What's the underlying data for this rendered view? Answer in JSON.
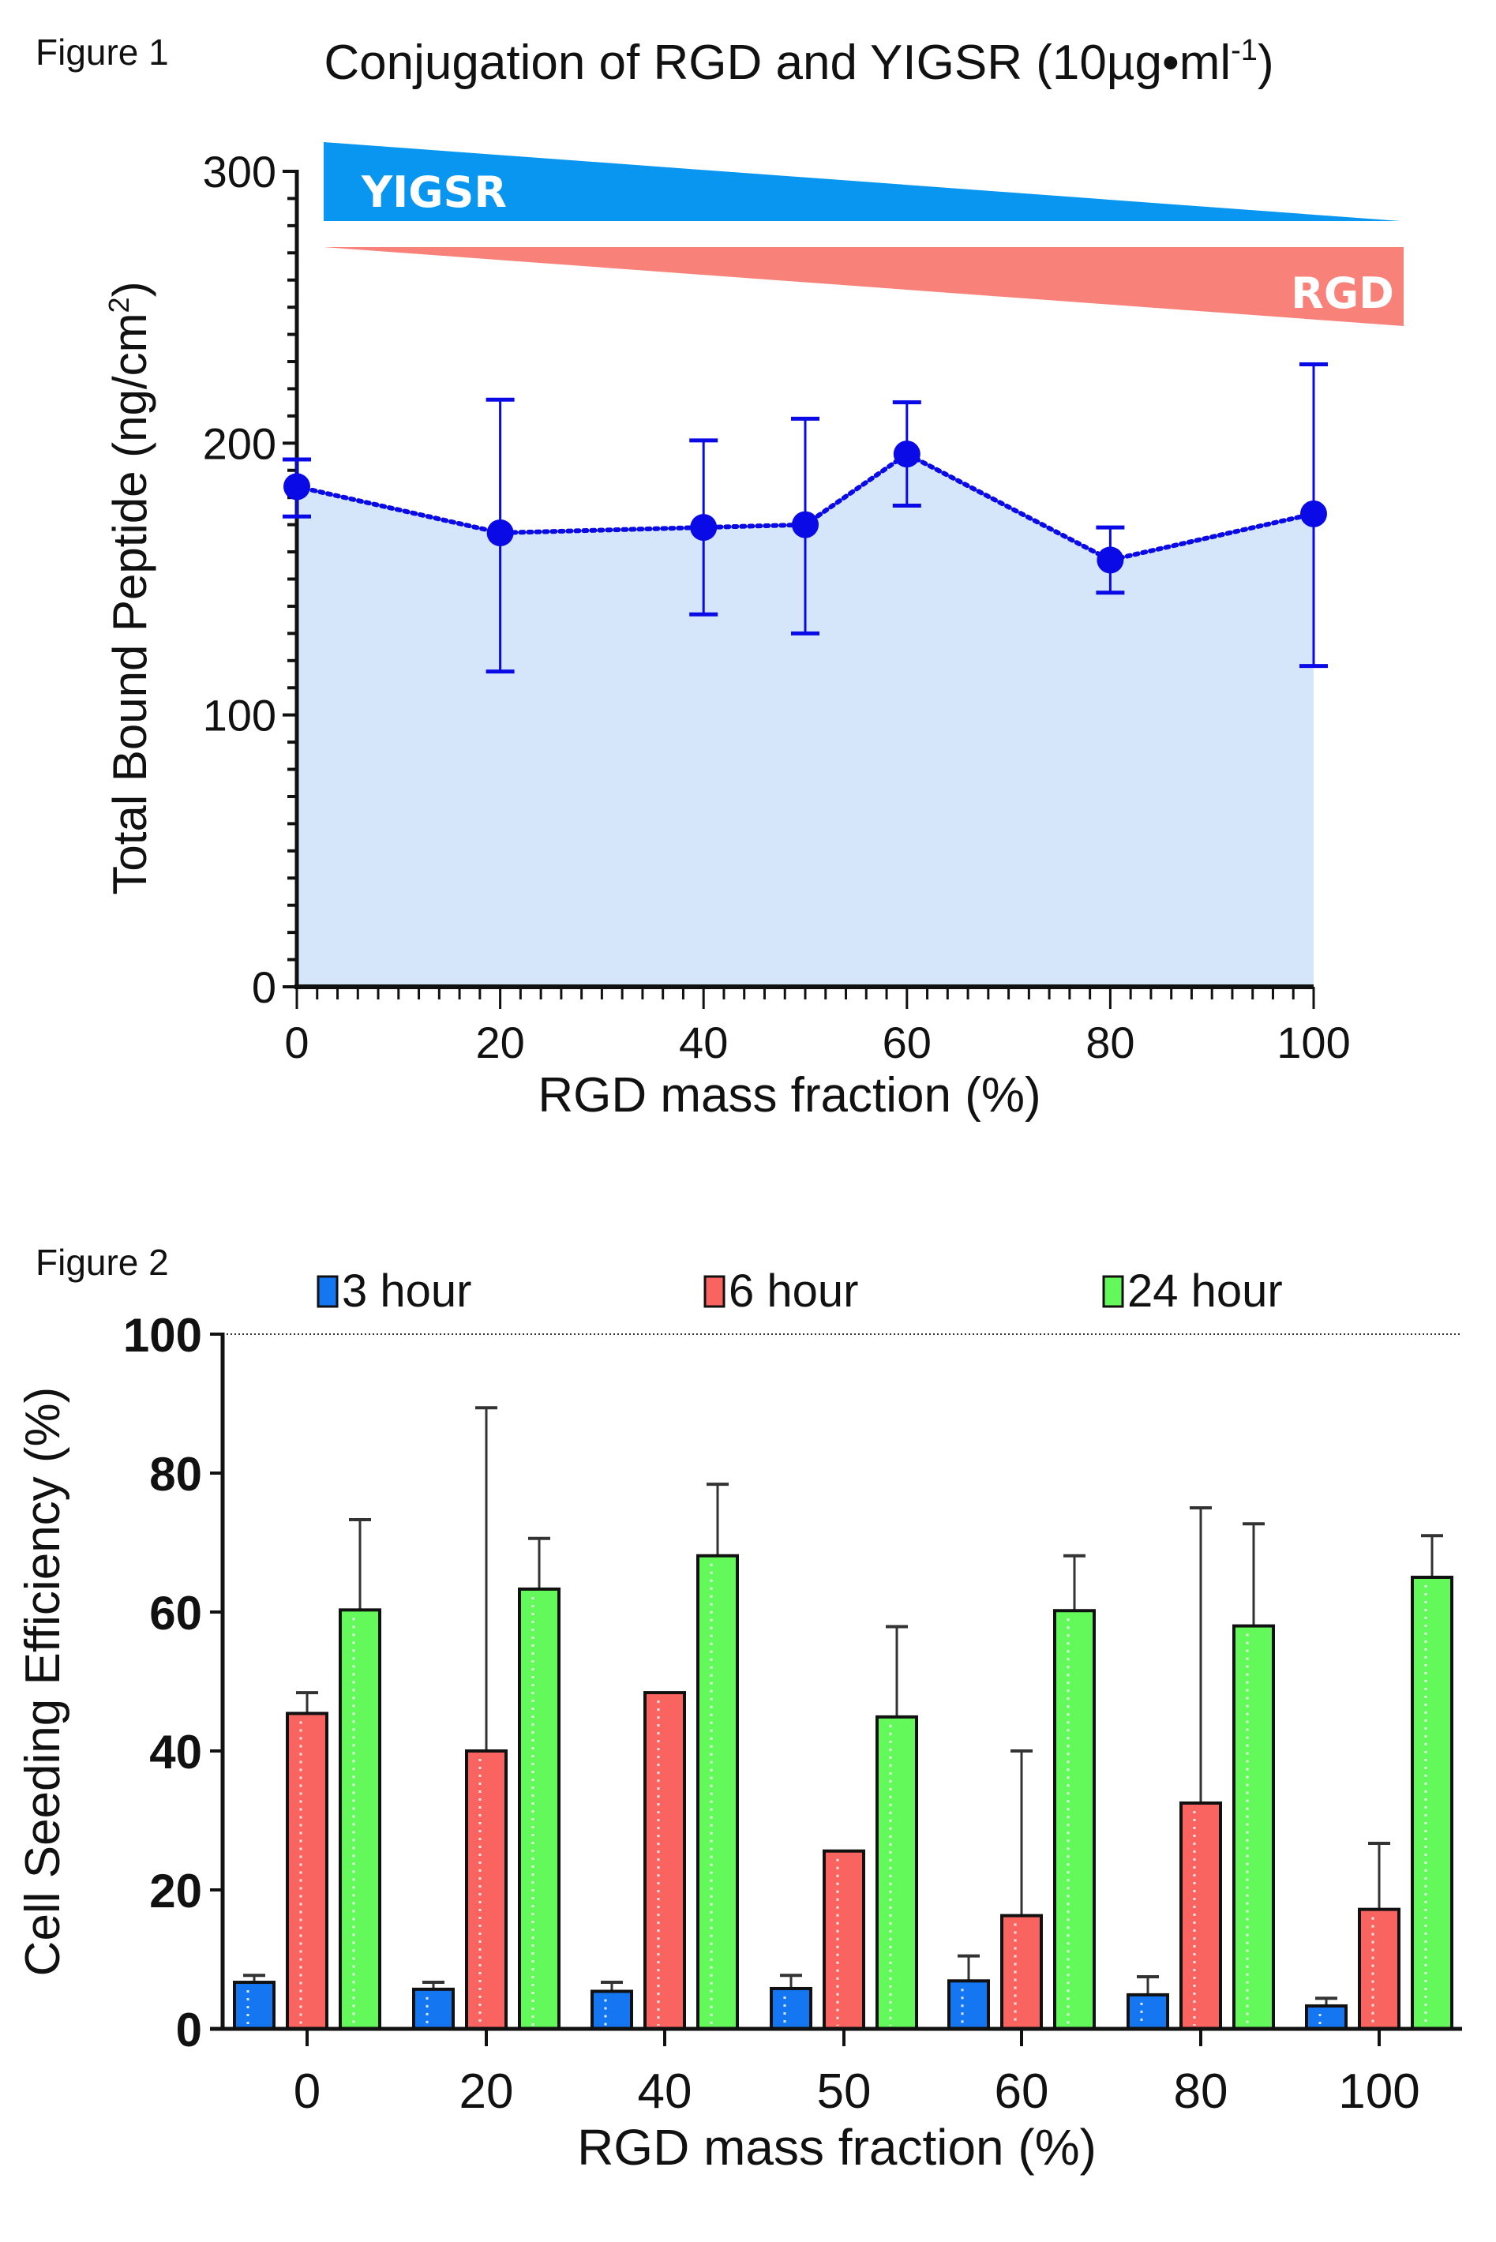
{
  "figures": [
    {
      "label": "Figure 1"
    },
    {
      "label": "Figure 2"
    }
  ],
  "chart_data": [
    {
      "type": "line",
      "title": "Conjugation of RGD and YIGSR (10µg•ml⁻¹)",
      "title_main": "Conjugation of RGD and YIGSR (10µg•ml",
      "title_sup": "-1",
      "title_end": ")",
      "xlabel": "RGD mass fraction (%)",
      "ylabel": "Total Bound Peptide (ng/cm²)",
      "ylabel_main": "Total Bound Peptide (ng/cm",
      "ylabel_sup": "2",
      "ylabel_end": ")",
      "xlim": [
        0,
        100
      ],
      "ylim": [
        0,
        300
      ],
      "xticks": [
        "0",
        "20",
        "40",
        "60",
        "80",
        "100"
      ],
      "yticks": [
        "0",
        "100",
        "200",
        "300"
      ],
      "x": [
        0,
        20,
        40,
        50,
        60,
        80,
        100
      ],
      "series": [
        {
          "name": "Total Bound Peptide",
          "values": [
            184,
            167,
            169,
            170,
            196,
            157,
            174
          ],
          "err_upper": [
            194,
            216,
            201,
            209,
            215,
            169,
            229
          ],
          "err_lower": [
            173,
            116,
            137,
            130,
            177,
            145,
            118
          ],
          "color": "#0a0ae6",
          "fill": "#d6e6fa",
          "line_style": "dotted"
        }
      ],
      "gradient_annotations": [
        {
          "label": "YIGSR",
          "trend": "decreasing",
          "color": "#0896f0"
        },
        {
          "label": "RGD",
          "trend": "increasing",
          "color": "#f8827a"
        }
      ],
      "grid": false
    },
    {
      "type": "bar",
      "title": "",
      "xlabel": "RGD mass fraction (%)",
      "ylabel": "Cell Seeding Efficiency (%)",
      "categories": [
        "0",
        "20",
        "40",
        "50",
        "60",
        "80",
        "100"
      ],
      "ylim": [
        0,
        100
      ],
      "yticks": [
        "0",
        "20",
        "40",
        "60",
        "80",
        "100"
      ],
      "reference_line": {
        "y": 100,
        "style": "dotted"
      },
      "legend_position": "top",
      "series": [
        {
          "name": "3 hour",
          "color": "#1476f0",
          "values": [
            6.7,
            5.7,
            5.4,
            5.8,
            6.9,
            4.9,
            3.3
          ],
          "err_upper": [
            7.7,
            6.7,
            6.7,
            7.7,
            10.5,
            7.5,
            4.4
          ]
        },
        {
          "name": "6 hour",
          "color": "#f96460",
          "values": [
            45.4,
            40.0,
            48.4,
            25.6,
            16.3,
            32.5,
            17.2
          ],
          "err_upper": [
            48.4,
            89.4,
            null,
            null,
            40.0,
            75.0,
            26.7
          ]
        },
        {
          "name": "24 hour",
          "color": "#63f95a",
          "values": [
            60.3,
            63.3,
            68.1,
            44.9,
            60.2,
            58.0,
            65.0
          ],
          "err_upper": [
            73.3,
            70.6,
            78.4,
            57.9,
            68.1,
            72.7,
            71.0
          ]
        }
      ],
      "grid": false
    }
  ]
}
